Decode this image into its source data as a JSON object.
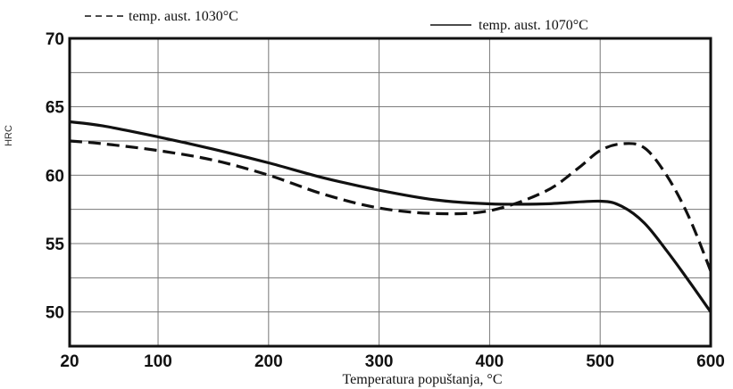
{
  "chart_data": {
    "type": "line",
    "xlabel": "Temperatura popuštanja, °C",
    "ylabel": "HRC",
    "xlim": [
      20,
      600
    ],
    "ylim": [
      47.5,
      70
    ],
    "xticks": [
      20,
      100,
      200,
      300,
      400,
      500,
      600
    ],
    "xtick_labels": [
      "20",
      "100",
      "200",
      "300",
      "400",
      "500",
      "600"
    ],
    "yticks": [
      50,
      55,
      60,
      65,
      70
    ],
    "ytick_labels": [
      "50",
      "55",
      "60",
      "65",
      "70"
    ],
    "grid": true,
    "legend_position": "top",
    "series": [
      {
        "name": "temp. aust. 1030°C",
        "style": "dashed",
        "x": [
          20,
          50,
          100,
          150,
          200,
          250,
          300,
          350,
          400,
          450,
          480,
          500,
          520,
          540,
          560,
          580,
          600
        ],
        "y": [
          62.5,
          62.3,
          61.8,
          61.1,
          60.0,
          58.6,
          57.6,
          57.2,
          57.4,
          58.8,
          60.5,
          61.8,
          62.3,
          62.0,
          60.0,
          57.0,
          53.0
        ]
      },
      {
        "name": "temp. aust. 1070°C",
        "style": "solid",
        "x": [
          20,
          50,
          100,
          150,
          200,
          250,
          300,
          350,
          400,
          450,
          500,
          520,
          540,
          560,
          580,
          600
        ],
        "y": [
          63.9,
          63.6,
          62.8,
          61.9,
          60.9,
          59.8,
          58.9,
          58.2,
          57.9,
          57.9,
          58.1,
          57.7,
          56.5,
          54.5,
          52.3,
          50.0
        ]
      }
    ]
  }
}
